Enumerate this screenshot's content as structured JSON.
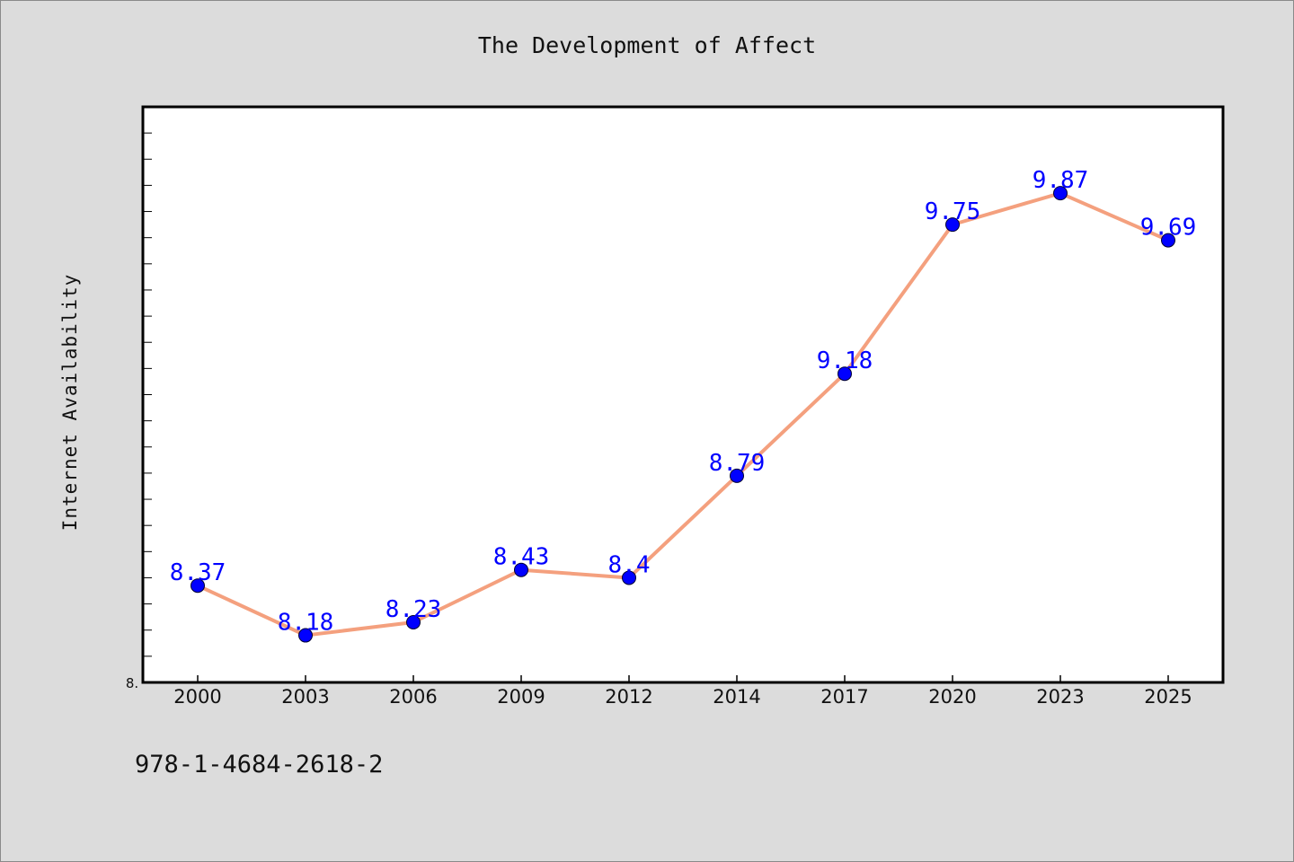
{
  "chart_data": {
    "type": "line",
    "title": "The Development of Affect",
    "xlabel": "",
    "ylabel": "Internet Availability",
    "categories": [
      "2000",
      "2003",
      "2006",
      "2009",
      "2012",
      "2014",
      "2017",
      "2020",
      "2023",
      "2025"
    ],
    "series": [
      {
        "values": [
          8.37,
          8.18,
          8.23,
          8.43,
          8.4,
          8.79,
          9.18,
          9.75,
          9.87,
          9.69
        ],
        "labels": [
          "8.37",
          "8.18",
          "8.23",
          "8.43",
          "8.4",
          "8.79",
          "9.18",
          "9.75",
          "9.87",
          "9.69"
        ],
        "line_color": "#f4a07e",
        "marker_color": "#0000ff"
      }
    ],
    "y_tick_labels": [
      "8."
    ],
    "ylim": [
      8.0,
      10.2
    ],
    "grid": false,
    "background": "#dcdcdc",
    "plot_background": "#ffffff"
  },
  "footnote": "978-1-4684-2618-2"
}
